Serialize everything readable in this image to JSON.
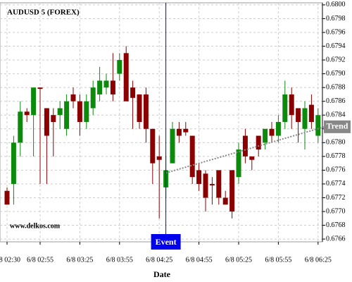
{
  "chart_data": {
    "type": "candlestick",
    "title": "AUDUSD 5 (FOREX)",
    "watermark": "www.delkos.com",
    "x_label": "Date",
    "categories": [
      "6/8 02:30",
      null,
      null,
      null,
      null,
      "6/8 02:55",
      null,
      null,
      null,
      null,
      null,
      "6/8 03:25",
      null,
      null,
      null,
      null,
      null,
      "6/8 03:55",
      null,
      null,
      null,
      null,
      null,
      "6/8 04:25",
      null,
      null,
      null,
      null,
      null,
      "6/8 04:55",
      null,
      null,
      null,
      null,
      null,
      "6/8 05:25",
      null,
      null,
      null,
      null,
      null,
      "6/8 05:55",
      null,
      null,
      null,
      null,
      null,
      "6/8 06:25"
    ],
    "open": [
      0.6773,
      0.6774,
      0.678,
      0.67845,
      0.6784,
      0.6788,
      0.6785,
      0.6784,
      0.6784,
      0.6782,
      0.6787,
      0.6786,
      0.6783,
      0.6785,
      0.6787,
      0.6788,
      0.6789,
      0.679,
      0.6793,
      0.6788,
      0.6787,
      0.6787,
      0.6782,
      0.6778,
      0.67735,
      0.6777,
      0.6782,
      0.6782,
      0.6781,
      0.6776,
      0.67755,
      0.6774,
      0.6776,
      0.6772,
      0.6776,
      0.6775,
      0.6781,
      0.6778,
      0.6781,
      0.678,
      0.6782,
      0.6781,
      0.6783,
      0.6787,
      0.6785,
      0.6782,
      0.67855,
      0.6781
    ],
    "high": [
      0.67735,
      0.6781,
      0.6786,
      0.6785,
      0.6788,
      0.6788,
      0.6785,
      0.6785,
      0.6786,
      0.6787,
      0.6788,
      0.6787,
      0.6787,
      0.6789,
      0.6791,
      0.679,
      0.6793,
      0.6793,
      0.6794,
      0.6789,
      0.6787,
      0.6788,
      0.6782,
      0.6781,
      0.6778,
      0.6783,
      0.6783,
      0.6783,
      0.6781,
      0.6777,
      0.6776,
      0.6775,
      0.6776,
      0.6773,
      0.6776,
      0.678,
      0.6782,
      0.6778,
      0.6781,
      0.6782,
      0.6783,
      0.6784,
      0.6789,
      0.6788,
      0.6785,
      0.6786,
      0.6787,
      0.6785
    ],
    "low": [
      0.6771,
      0.6771,
      0.6778,
      0.6783,
      0.6778,
      0.6774,
      0.6774,
      0.6778,
      0.6782,
      0.6781,
      0.6785,
      0.6781,
      0.6782,
      0.6784,
      0.6786,
      0.6787,
      0.6786,
      0.6789,
      0.6786,
      0.6782,
      0.6782,
      0.678,
      0.6774,
      0.6769,
      0.6772,
      0.6777,
      0.678,
      0.6781,
      0.6774,
      0.6773,
      0.677,
      0.6771,
      0.6771,
      0.6771,
      0.6769,
      0.6774,
      0.6777,
      0.6776,
      0.6778,
      0.6779,
      0.678,
      0.678,
      0.6782,
      0.6782,
      0.678,
      0.6779,
      0.6782,
      0.678
    ],
    "close": [
      0.6771,
      0.678,
      0.67845,
      0.6784,
      0.6788,
      0.67878,
      0.6781,
      0.6783,
      0.6785,
      0.6786,
      0.6786,
      0.6783,
      0.6786,
      0.6788,
      0.6789,
      0.6789,
      0.6787,
      0.6792,
      0.6786,
      0.67865,
      0.6783,
      0.6782,
      0.6777,
      0.67775,
      0.6776,
      0.6782,
      0.6781,
      0.67815,
      0.6775,
      0.6774,
      0.6772,
      0.67738,
      0.6772,
      0.6771,
      0.677,
      0.6779,
      0.6778,
      0.67775,
      0.6779,
      0.6782,
      0.6781,
      0.6783,
      0.6787,
      0.6784,
      0.6783,
      0.6785,
      0.6783,
      0.6784
    ],
    "up_color": "#0b8a0b",
    "down_color": "#8b0000",
    "ylim": [
      0.67656,
      0.68003
    ],
    "yticks": [
      0.6766,
      0.6768,
      {
        "value": 0.677,
        "label": "0.6770"
      },
      0.6772,
      0.6774,
      0.6776,
      0.6778,
      {
        "value": 0.678,
        "label": "0.6780"
      },
      0.6782,
      0.6784,
      0.6786,
      0.6788,
      {
        "value": 0.679,
        "label": "0.6790"
      },
      0.6792,
      0.6794,
      0.6796,
      0.6798,
      {
        "value": 0.68,
        "label": "0.6800"
      }
    ],
    "grid": true,
    "event": {
      "label": "Event",
      "index": 24,
      "color": "#0000ee"
    },
    "trend": {
      "label": "Trend",
      "points": [
        {
          "index": 24,
          "value": 0.67756
        },
        {
          "index": 48,
          "value": 0.67823
        }
      ],
      "color": "#888888"
    }
  }
}
